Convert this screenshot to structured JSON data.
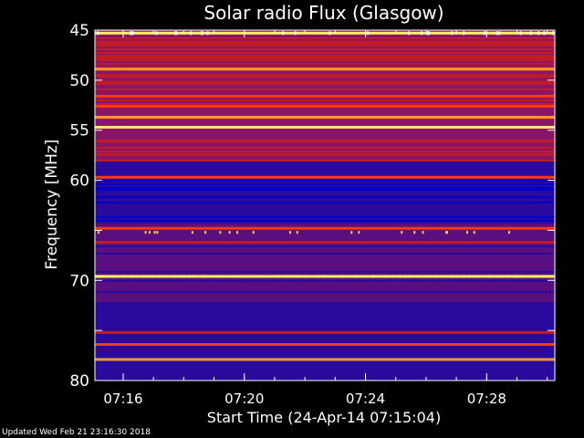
{
  "chart_data": {
    "type": "heatmap",
    "title": "Solar radio Flux (Glasgow)",
    "xlabel": "Start Time (24-Apr-14 07:15:04)",
    "ylabel": "Frequency [MHz]",
    "x_unit": "time (HH:MM)",
    "xlim": [
      "07:15:04",
      "07:30:15"
    ],
    "ylim": [
      45,
      80
    ],
    "y_inverted": true,
    "x_ticks": [
      "07:16",
      "07:20",
      "07:24",
      "07:28"
    ],
    "y_ticks": [
      45,
      50,
      55,
      60,
      65,
      70,
      75,
      80
    ],
    "y_tick_labels": [
      "45",
      "50",
      "55",
      "60",
      "",
      "70",
      "",
      "80"
    ],
    "colormap": [
      "#0000c8",
      "#2a0a9c",
      "#5a0f80",
      "#8a1468",
      "#c01c28",
      "#ff3a10",
      "#ff9a20",
      "#ffee60"
    ],
    "frequency_bands_mhz": [
      {
        "freq": 45.3,
        "intensity": 0.95
      },
      {
        "freq": 46.2,
        "intensity": 0.55
      },
      {
        "freq": 47.6,
        "intensity": 0.6
      },
      {
        "freq": 48.9,
        "intensity": 0.85
      },
      {
        "freq": 50.2,
        "intensity": 0.6
      },
      {
        "freq": 51.6,
        "intensity": 0.7
      },
      {
        "freq": 52.6,
        "intensity": 0.7
      },
      {
        "freq": 53.7,
        "intensity": 0.8
      },
      {
        "freq": 54.7,
        "intensity": 0.98
      },
      {
        "freq": 56.1,
        "intensity": 0.6
      },
      {
        "freq": 57.4,
        "intensity": 0.55
      },
      {
        "freq": 59.7,
        "intensity": 0.65
      },
      {
        "freq": 64.8,
        "intensity": 0.7
      },
      {
        "freq": 66.2,
        "intensity": 0.6
      },
      {
        "freq": 69.6,
        "intensity": 0.95
      },
      {
        "freq": 75.2,
        "intensity": 0.6
      },
      {
        "freq": 76.4,
        "intensity": 0.65
      },
      {
        "freq": 77.9,
        "intensity": 0.8
      }
    ]
  },
  "footer": {
    "updated": "Updated Wed Feb 21 23:16:30 2018"
  }
}
